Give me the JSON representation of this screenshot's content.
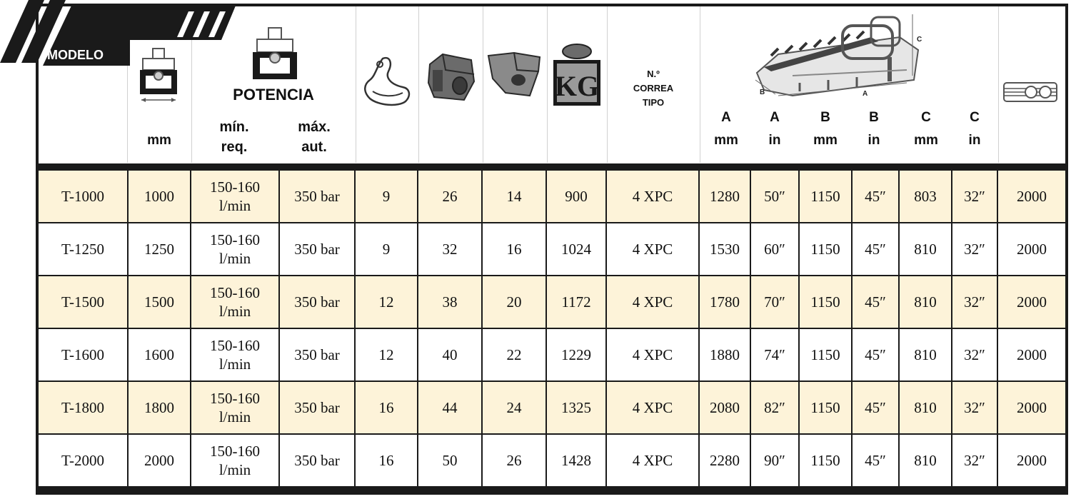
{
  "header": {
    "modelo": "MODELO",
    "width_unit": "mm",
    "potencia": "POTENCIA",
    "min_req": "mín.\nreq.",
    "max_aut": "máx.\naut.",
    "correa": "N.º\nCORREA\nTIPO",
    "dims": [
      {
        "letter": "A",
        "unit": "mm"
      },
      {
        "letter": "A",
        "unit": "in"
      },
      {
        "letter": "B",
        "unit": "mm"
      },
      {
        "letter": "B",
        "unit": "in"
      },
      {
        "letter": "C",
        "unit": "mm"
      },
      {
        "letter": "C",
        "unit": "in"
      }
    ],
    "diagram_labels": {
      "a": "A",
      "b": "B",
      "c": "C"
    },
    "kg": "KG"
  },
  "colors": {
    "row_odd": "#fdf3d9",
    "row_even": "#ffffff",
    "grid": "#1a1a1a",
    "banner": "#1a1a1a"
  },
  "icons": [
    "width-icon",
    "pto-icon",
    "hammer-blade-icon",
    "hammer-block-icon",
    "knife-icon",
    "weight-icon",
    "mulcher-diagram-icon",
    "cardan-shaft-icon"
  ],
  "rows": [
    {
      "model": "T-1000",
      "mm": "1000",
      "min": "150-160\nl/min",
      "max": "350 bar",
      "c1": "9",
      "c2": "26",
      "c3": "14",
      "kg": "900",
      "belt": "4 XPC",
      "a_mm": "1280",
      "a_in": "50″",
      "b_mm": "1150",
      "b_in": "45″",
      "c_mm": "803",
      "c_in": "32″",
      "last": "2000"
    },
    {
      "model": "T-1250",
      "mm": "1250",
      "min": "150-160\nl/min",
      "max": "350 bar",
      "c1": "9",
      "c2": "32",
      "c3": "16",
      "kg": "1024",
      "belt": "4 XPC",
      "a_mm": "1530",
      "a_in": "60″",
      "b_mm": "1150",
      "b_in": "45″",
      "c_mm": "810",
      "c_in": "32″",
      "last": "2000"
    },
    {
      "model": "T-1500",
      "mm": "1500",
      "min": "150-160\nl/min",
      "max": "350 bar",
      "c1": "12",
      "c2": "38",
      "c3": "20",
      "kg": "1172",
      "belt": "4 XPC",
      "a_mm": "1780",
      "a_in": "70″",
      "b_mm": "1150",
      "b_in": "45″",
      "c_mm": "810",
      "c_in": "32″",
      "last": "2000"
    },
    {
      "model": "T-1600",
      "mm": "1600",
      "min": "150-160\nl/min",
      "max": "350 bar",
      "c1": "12",
      "c2": "40",
      "c3": "22",
      "kg": "1229",
      "belt": "4 XPC",
      "a_mm": "1880",
      "a_in": "74″",
      "b_mm": "1150",
      "b_in": "45″",
      "c_mm": "810",
      "c_in": "32″",
      "last": "2000"
    },
    {
      "model": "T-1800",
      "mm": "1800",
      "min": "150-160\nl/min",
      "max": "350 bar",
      "c1": "16",
      "c2": "44",
      "c3": "24",
      "kg": "1325",
      "belt": "4 XPC",
      "a_mm": "2080",
      "a_in": "82″",
      "b_mm": "1150",
      "b_in": "45″",
      "c_mm": "810",
      "c_in": "32″",
      "last": "2000"
    },
    {
      "model": "T-2000",
      "mm": "2000",
      "min": "150-160\nl/min",
      "max": "350 bar",
      "c1": "16",
      "c2": "50",
      "c3": "26",
      "kg": "1428",
      "belt": "4 XPC",
      "a_mm": "2280",
      "a_in": "90″",
      "b_mm": "1150",
      "b_in": "45″",
      "c_mm": "810",
      "c_in": "32″",
      "last": "2000"
    }
  ]
}
